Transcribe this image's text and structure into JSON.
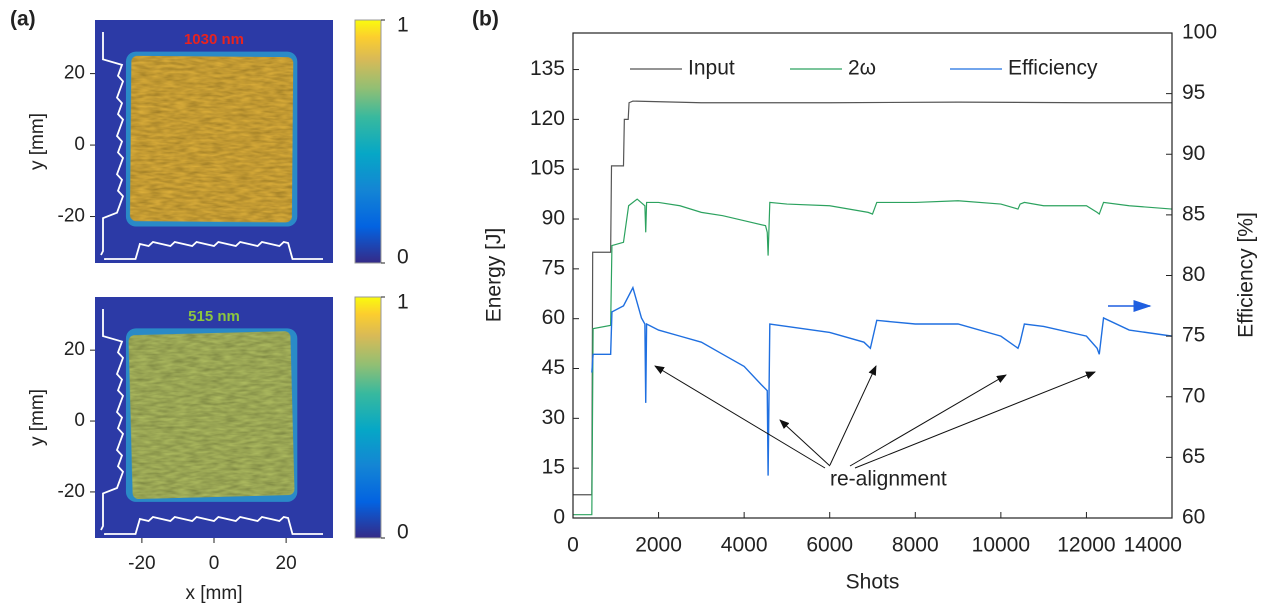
{
  "chart_data": [
    {
      "type": "heatmap",
      "panel_label": "(a)",
      "title": "1030 nm",
      "title_color": "#e8231f",
      "ylabel": "y [mm]",
      "xlim": [
        -33,
        33
      ],
      "ylim": [
        -33,
        35
      ],
      "yticks": [
        20,
        0,
        -20
      ],
      "clim": [
        0,
        1
      ],
      "cticks": [
        0,
        1
      ]
    },
    {
      "type": "heatmap",
      "title": "515 nm",
      "title_color": "#8cc63f",
      "xlabel": "x [mm]",
      "ylabel": "y [mm]",
      "xlim": [
        -33,
        33
      ],
      "ylim": [
        -33,
        35
      ],
      "xticks": [
        -20,
        0,
        20
      ],
      "yticks": [
        20,
        0,
        -20
      ],
      "clim": [
        0,
        1
      ],
      "cticks": [
        0,
        1
      ]
    },
    {
      "type": "line",
      "panel_label": "(b)",
      "xlabel": "Shots",
      "ylabel": "Energy [J]",
      "y2label": "Efficiency [%]",
      "xlim": [
        0,
        14000
      ],
      "ylim": [
        0,
        146
      ],
      "y2lim": [
        60,
        100
      ],
      "xticks": [
        0,
        2000,
        4000,
        6000,
        8000,
        10000,
        12000,
        14000
      ],
      "yticks": [
        0,
        15,
        30,
        45,
        60,
        75,
        90,
        105,
        120,
        135
      ],
      "y2ticks": [
        60,
        65,
        70,
        75,
        80,
        85,
        90,
        95,
        100
      ],
      "annotation": "re-alignment",
      "series": [
        {
          "name": "Input",
          "color": "#555555",
          "x": [
            0,
            440,
            460,
            880,
            900,
            1180,
            1200,
            1290,
            1310,
            1400,
            3000,
            6000,
            9000,
            12000,
            14000
          ],
          "values": [
            7,
            7,
            80,
            80,
            106,
            106,
            120,
            120,
            125,
            125.5,
            125,
            125,
            125.2,
            125,
            125
          ]
        },
        {
          "name": "2ω",
          "color": "#2ca25f",
          "x": [
            0,
            440,
            470,
            880,
            910,
            1180,
            1300,
            1500,
            1680,
            1700,
            1720,
            2000,
            2500,
            3000,
            3500,
            4000,
            4500,
            4540,
            4560,
            4600,
            5000,
            6000,
            6900,
            7000,
            7100,
            8000,
            9000,
            10000,
            10400,
            10450,
            10550,
            11000,
            12000,
            12250,
            12300,
            12400,
            13000,
            14000
          ],
          "values": [
            1,
            1,
            57,
            58,
            82,
            83,
            94,
            96,
            94,
            86,
            95,
            95,
            94,
            92,
            91,
            89.5,
            88,
            86,
            79,
            95,
            94.5,
            94,
            92,
            91.5,
            95,
            95,
            95.5,
            94.5,
            93,
            94.5,
            95,
            94,
            94,
            92,
            91.5,
            95,
            94,
            93
          ]
        },
        {
          "name": "Efficiency",
          "color": "#1f6fe0",
          "axis": "y2",
          "x": [
            440,
            470,
            880,
            910,
            1180,
            1400,
            1600,
            1680,
            1700,
            1720,
            2000,
            2500,
            3000,
            3500,
            4000,
            4400,
            4540,
            4560,
            4600,
            5000,
            6000,
            6800,
            6950,
            7100,
            8000,
            9000,
            10000,
            10400,
            10450,
            10550,
            11000,
            12000,
            12250,
            12300,
            12400,
            13000,
            14000
          ],
          "values": [
            72,
            73.5,
            73.5,
            77,
            77.5,
            79,
            76.5,
            76,
            69.5,
            76,
            75.5,
            75,
            74.5,
            73.5,
            72.5,
            71,
            70.5,
            63.5,
            76,
            75.8,
            75.3,
            74.5,
            74,
            76.3,
            76,
            76,
            75,
            74,
            74.5,
            76,
            75.8,
            75,
            74,
            73.5,
            76.5,
            75.5,
            75
          ]
        }
      ],
      "legend": "top"
    }
  ]
}
